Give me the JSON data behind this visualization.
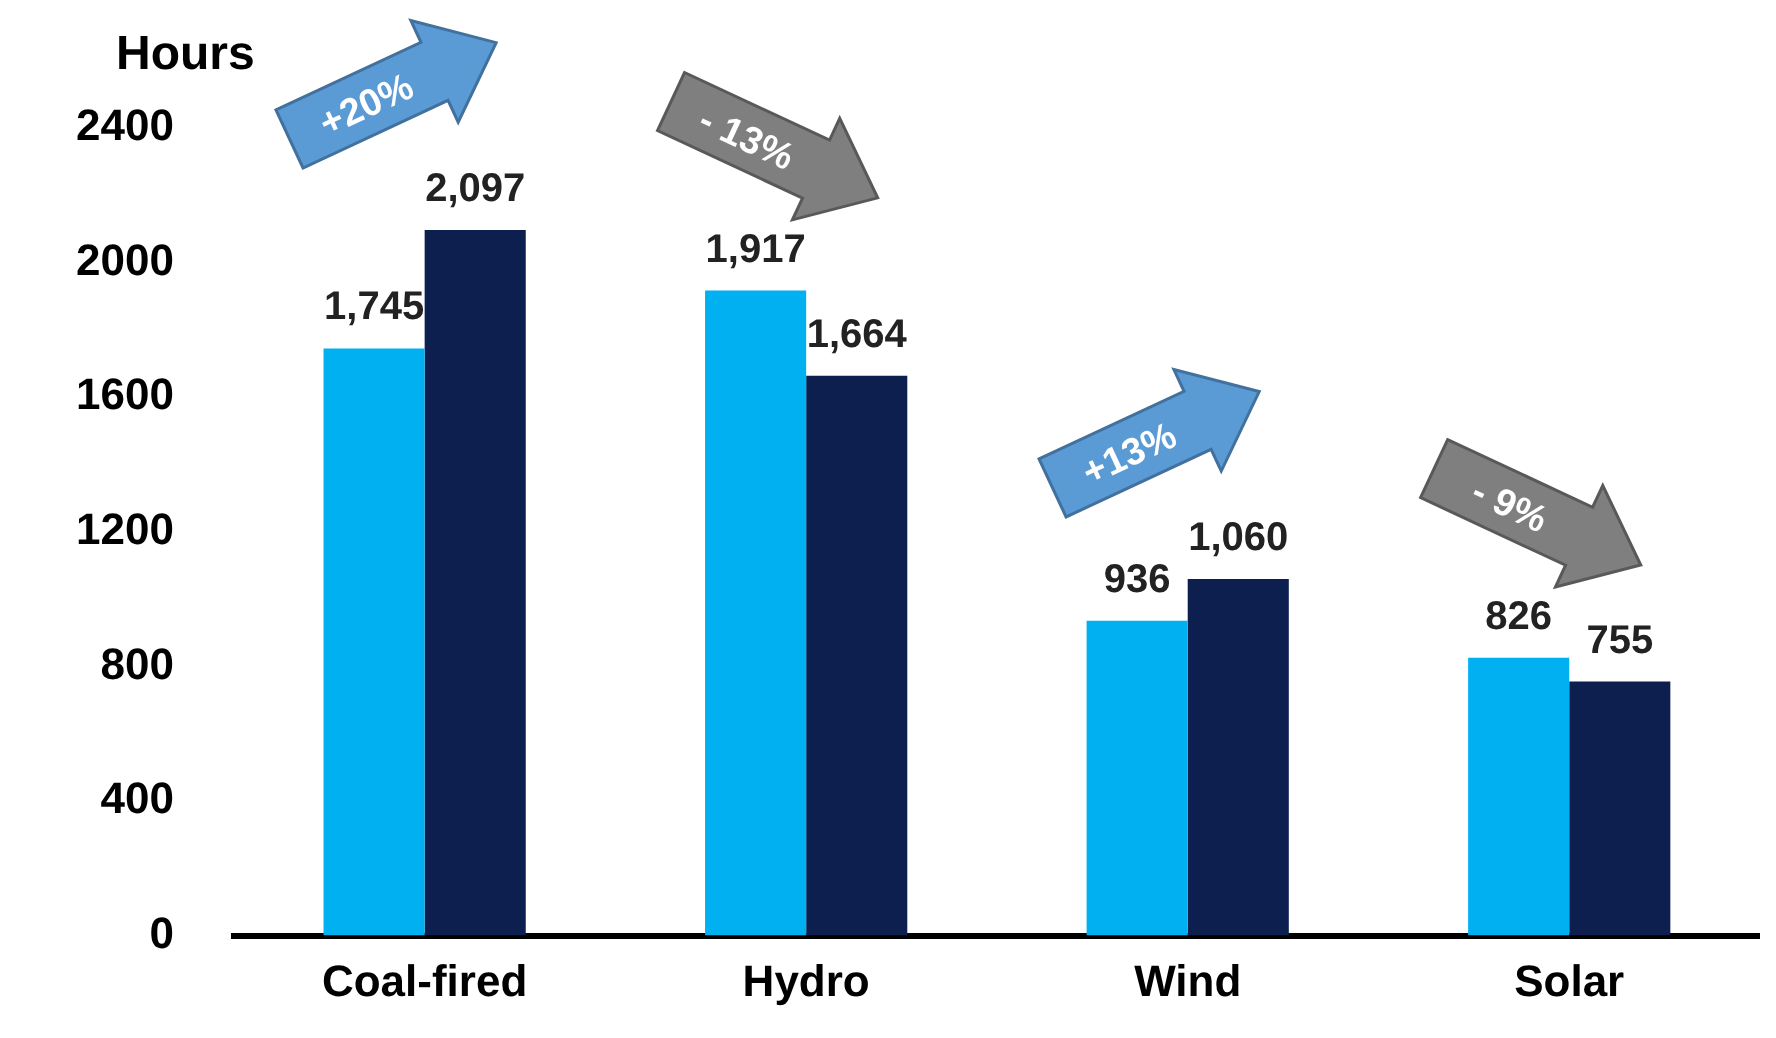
{
  "chart_data": {
    "type": "bar",
    "ylabel": "Hours",
    "categories": [
      "Coal-fired",
      "Hydro",
      "Wind",
      "Solar"
    ],
    "series": [
      {
        "color": "#00b0f0",
        "values": [
          1745,
          1917,
          936,
          826
        ],
        "value_labels": [
          "1,745",
          "1,917",
          "936",
          "826"
        ]
      },
      {
        "color": "#0c1f4f",
        "values": [
          2097,
          1664,
          1060,
          755
        ],
        "value_labels": [
          "2,097",
          "1,664",
          "1,060",
          "755"
        ]
      }
    ],
    "ylim": [
      0,
      2400
    ],
    "yticks": [
      0,
      400,
      800,
      1200,
      1600,
      2000,
      2400
    ],
    "annotations": [
      "+20%",
      "- 13%",
      "+13%",
      "- 9%"
    ]
  }
}
